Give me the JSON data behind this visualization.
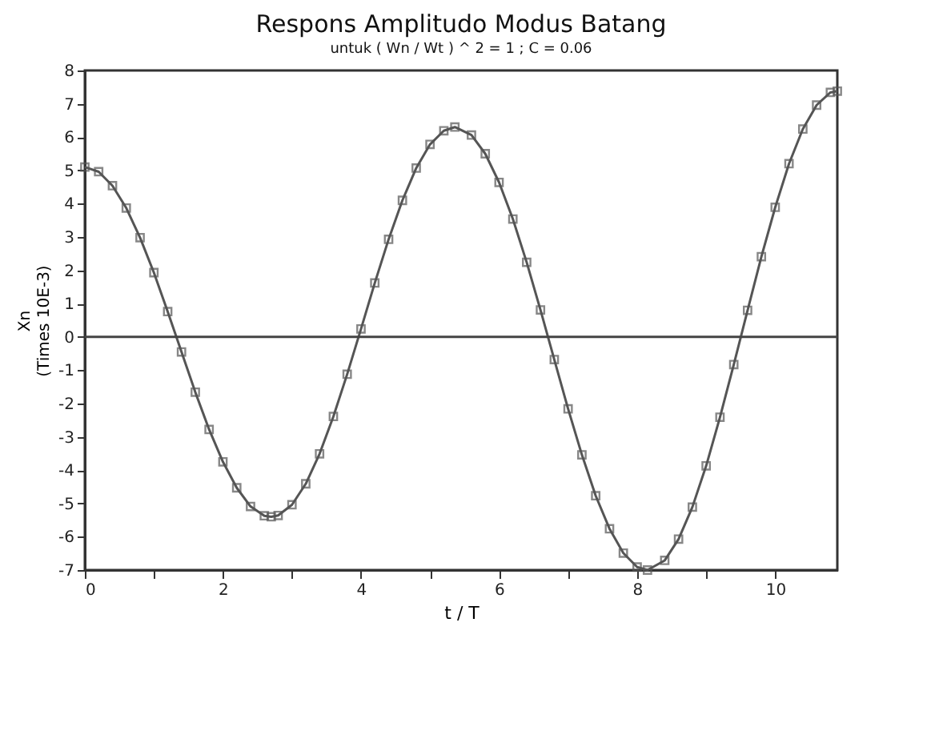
{
  "chart_data": {
    "type": "line",
    "title": "Respons Amplitudo Modus Batang",
    "subtitle": "untuk ( Wn / Wt ) ^ 2 = 1 ; C = 0.06",
    "xlabel": "t / T",
    "ylabel": "Xn\n(Times 10E-3)",
    "x": [
      0,
      0.2,
      0.4,
      0.6,
      0.8,
      1.0,
      1.2,
      1.4,
      1.6,
      1.8,
      2.0,
      2.2,
      2.4,
      2.6,
      2.7,
      2.8,
      3.0,
      3.2,
      3.4,
      3.6,
      3.8,
      4.0,
      4.2,
      4.4,
      4.6,
      4.8,
      5.0,
      5.2,
      5.36,
      5.6,
      5.8,
      6.0,
      6.2,
      6.4,
      6.6,
      6.8,
      7.0,
      7.2,
      7.4,
      7.6,
      7.8,
      8.0,
      8.15,
      8.4,
      8.6,
      8.8,
      9.0,
      9.2,
      9.4,
      9.6,
      9.8,
      10.0,
      10.2,
      10.4,
      10.6,
      10.8,
      10.9
    ],
    "series": [
      {
        "color": "#555555",
        "values": [
          5.1,
          4.96,
          4.54,
          3.87,
          2.98,
          1.93,
          0.76,
          -0.45,
          -1.66,
          -2.78,
          -3.75,
          -4.53,
          -5.09,
          -5.37,
          -5.4,
          -5.36,
          -5.04,
          -4.41,
          -3.51,
          -2.39,
          -1.12,
          0.24,
          1.62,
          2.93,
          4.1,
          5.07,
          5.78,
          6.19,
          6.3,
          6.06,
          5.5,
          4.64,
          3.54,
          2.24,
          0.81,
          -0.68,
          -2.16,
          -3.54,
          -4.77,
          -5.76,
          -6.49,
          -6.91,
          -7.0,
          -6.71,
          -6.07,
          -5.11,
          -3.87,
          -2.41,
          -0.83,
          0.8,
          2.41,
          3.89,
          5.2,
          6.24,
          6.96,
          7.34,
          7.38
        ]
      }
    ],
    "xlim": [
      0,
      10.9
    ],
    "xticks": [
      0,
      {
        "value": 1,
        "label": null
      },
      2,
      {
        "value": 3,
        "label": null
      },
      4,
      {
        "value": 5,
        "label": null
      },
      6,
      {
        "value": 7,
        "label": null
      },
      8,
      {
        "value": 9,
        "label": null
      },
      10
    ],
    "ylim": [
      -7,
      8
    ],
    "yticks": [
      -7,
      -6,
      -5,
      -4,
      -3,
      -2,
      -1,
      0,
      1,
      2,
      3,
      4,
      5,
      6,
      7,
      8
    ],
    "ref_lines": [
      {
        "axis": "y",
        "value": 0,
        "color": "#444444"
      }
    ],
    "marker": "square",
    "line_style": "solid",
    "grid": false,
    "legend": false
  }
}
